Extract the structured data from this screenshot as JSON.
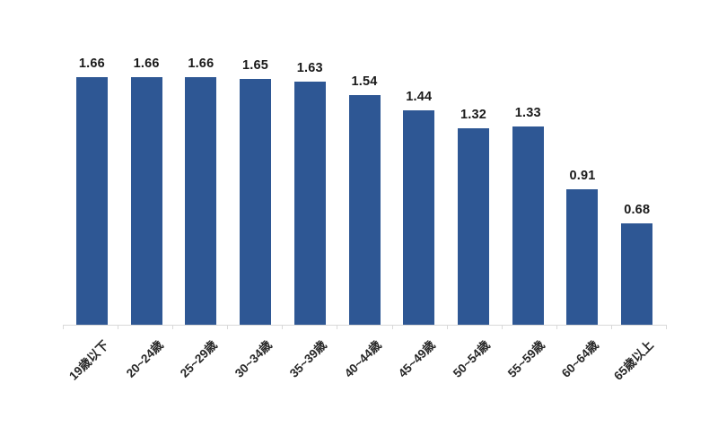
{
  "chart_data": {
    "type": "bar",
    "categories": [
      "19歳以下",
      "20~24歳",
      "25~29歳",
      "30~34歳",
      "35~39歳",
      "40~44歳",
      "45~49歳",
      "50~54歳",
      "55~59歳",
      "60~64歳",
      "65歳以上"
    ],
    "values": [
      1.66,
      1.66,
      1.66,
      1.65,
      1.63,
      1.54,
      1.44,
      1.32,
      1.33,
      0.91,
      0.68
    ],
    "value_labels": [
      "1.66",
      "1.66",
      "1.66",
      "1.65",
      "1.63",
      "1.54",
      "1.44",
      "1.32",
      "1.33",
      "0.91",
      "0.68"
    ],
    "title": "",
    "xlabel": "",
    "ylabel": "",
    "ylim": [
      0,
      1.94
    ],
    "grid": false,
    "legend": "none",
    "data_labels": true,
    "x_label_rotation_deg": 45,
    "colors": {
      "bar": "#2e5794",
      "axis_line": "#d9d9d9",
      "value_label_text": "#1a1a1a",
      "category_label_text": "#262626",
      "background": "#ffffff"
    }
  }
}
